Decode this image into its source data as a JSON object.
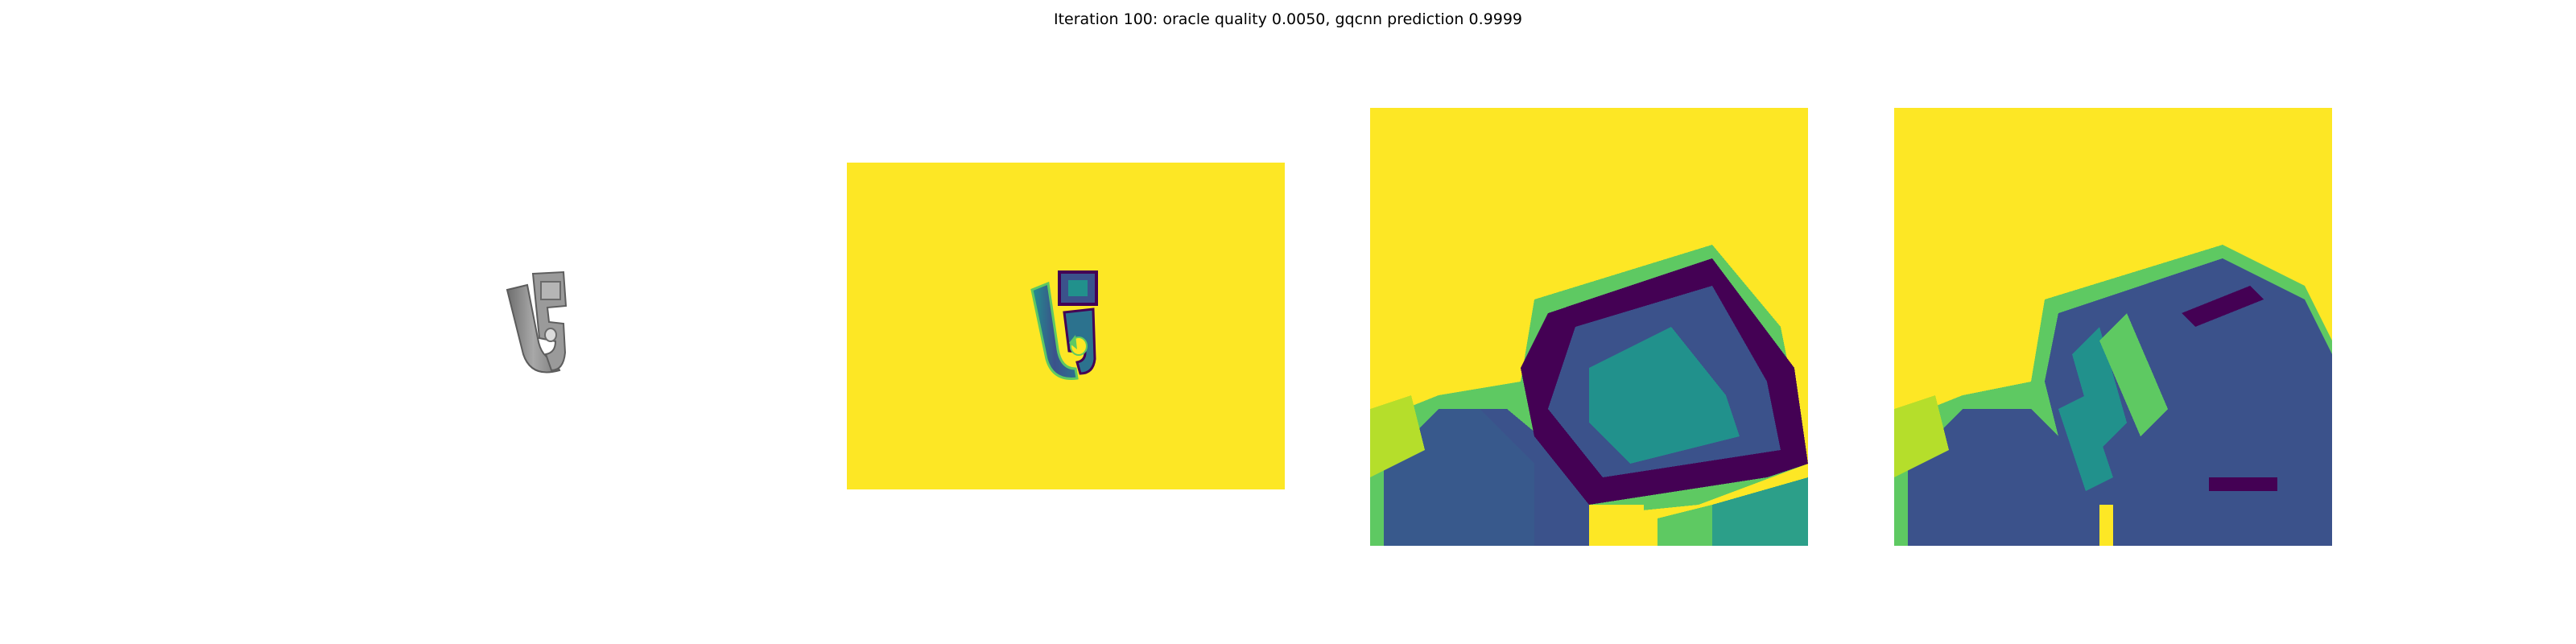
{
  "figure": {
    "title": "Iteration 100: oracle quality 0.0050, gqcnn prediction 0.9999"
  },
  "panels": [
    {
      "name": "rendered-object",
      "kind": "grayscale render"
    },
    {
      "name": "depth-image",
      "kind": "viridis colormap"
    },
    {
      "name": "grasp-crop-1",
      "kind": "viridis colormap"
    },
    {
      "name": "grasp-crop-2",
      "kind": "viridis colormap"
    }
  ],
  "colors": {
    "background": "#ffffff",
    "viridis_yellow": "#fde725",
    "viridis_green": "#5ec962",
    "viridis_teal": "#21918c",
    "viridis_blue": "#3b528b",
    "viridis_purple": "#440154",
    "object_gray": "#8a8a8a"
  }
}
